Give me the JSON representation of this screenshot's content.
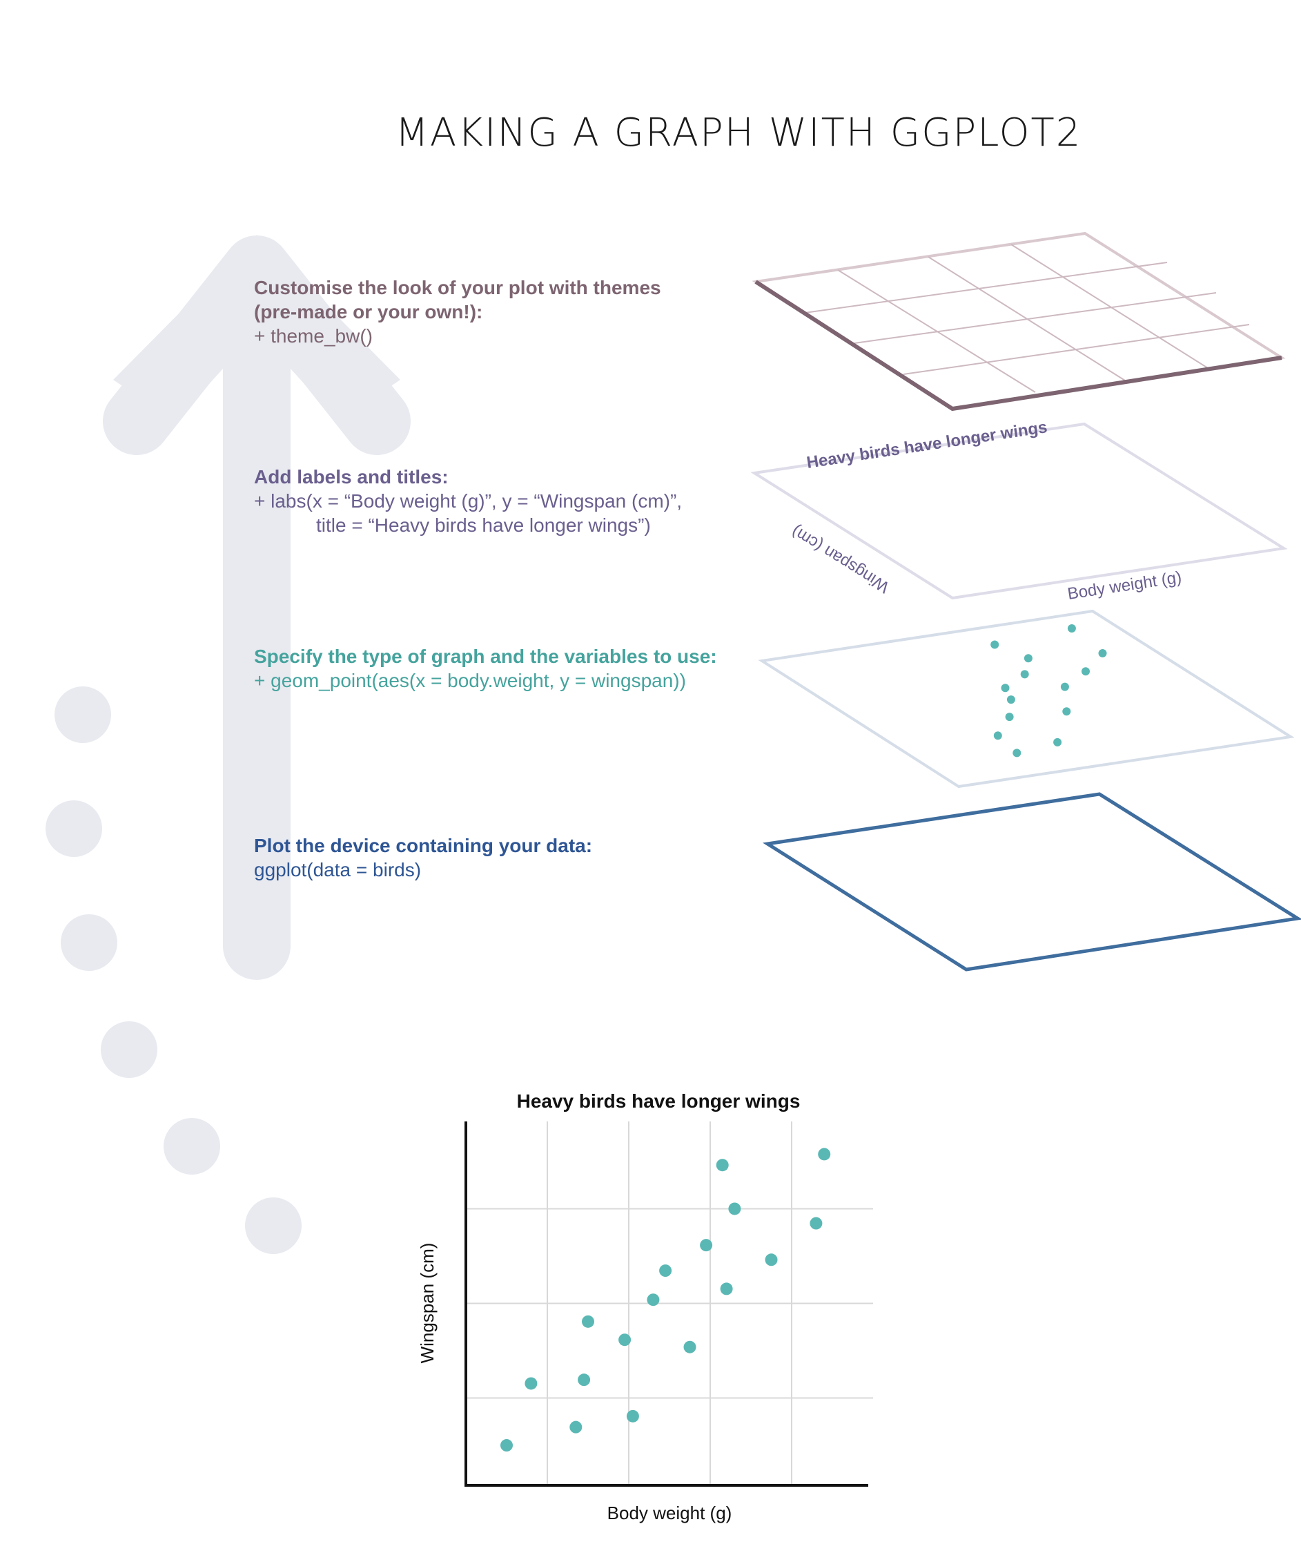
{
  "title": "MAKING A GRAPH WITH GGPLOT2",
  "steps": {
    "theme": {
      "heading": "Customise the look of your plot with themes (pre-made or your own!):",
      "code": "+ theme_bw()"
    },
    "labs": {
      "heading": "Add labels and titles:",
      "code_line1": "+ labs(x = “Body weight (g)”, y = “Wingspan (cm)”,",
      "code_line2": "title = “Heavy birds have longer wings”)"
    },
    "geom": {
      "heading": "Specify the type of graph and the variables to use:",
      "code": "+ geom_point(aes(x = body.weight, y = wingspan))"
    },
    "data": {
      "heading": "Plot the device containing your data:",
      "code": "ggplot(data = birds)"
    }
  },
  "layer_labels": {
    "title": "Heavy birds have longer wings",
    "x": "Body weight (g)",
    "y": "Wingspan (cm)"
  },
  "colors": {
    "theme": "#7d6470",
    "labs": "#6a5f8e",
    "geom": "#45a39d",
    "data": "#2e5594",
    "points": "#5ab8b4",
    "decoration": "#e8eaf0"
  },
  "chart_data": {
    "type": "scatter",
    "title": "Heavy birds have longer wings",
    "xlabel": "Body weight (g)",
    "ylabel": "Wingspan (cm)",
    "xlim": [
      0,
      10
    ],
    "ylim": [
      0,
      10
    ],
    "grid": true,
    "x": [
      1.0,
      1.6,
      2.7,
      2.9,
      3.0,
      3.9,
      4.1,
      4.6,
      4.9,
      5.5,
      5.9,
      6.3,
      6.4,
      6.6,
      7.5,
      8.6,
      8.8
    ],
    "y": [
      1.1,
      2.8,
      1.6,
      2.9,
      4.5,
      4.0,
      1.9,
      5.1,
      5.9,
      3.8,
      6.6,
      8.8,
      5.4,
      7.6,
      6.2,
      7.2,
      9.1
    ]
  }
}
